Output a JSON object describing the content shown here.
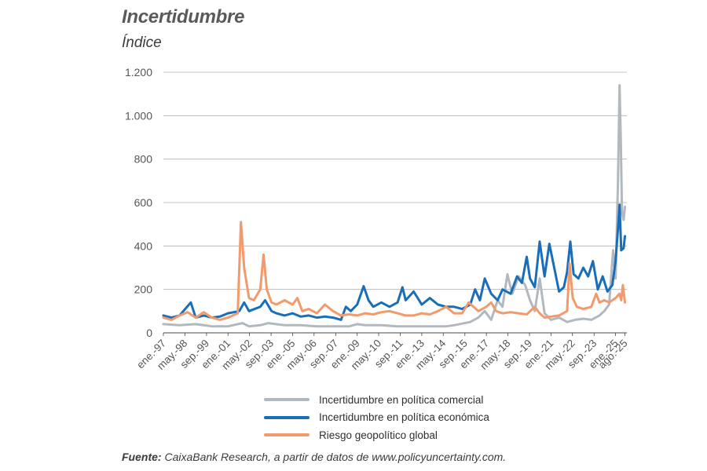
{
  "chart_data": {
    "type": "line",
    "title": "Incertidumbre",
    "ylabel": "Índice",
    "ylim": [
      0,
      1200
    ],
    "yticks": [
      0,
      200,
      400,
      600,
      800,
      1000,
      1200
    ],
    "ytick_labels": [
      "0",
      "200",
      "400",
      "600",
      "800",
      "1.000",
      "1.200"
    ],
    "xlim": [
      1997.0,
      2025.7
    ],
    "xticks": [
      1997.0,
      1998.33,
      1999.67,
      2001.0,
      2002.33,
      2003.67,
      2005.0,
      2006.33,
      2007.67,
      2009.0,
      2010.33,
      2011.67,
      2013.0,
      2014.33,
      2015.67,
      2017.0,
      2018.33,
      2019.67,
      2021.0,
      2022.33,
      2023.67,
      2025.0,
      2025.58
    ],
    "xtick_labels": [
      "ene.-97",
      "may.-98",
      "sep.-99",
      "ene.-01",
      "may.-02",
      "sep.-03",
      "ene.-05",
      "may.-06",
      "sep.-07",
      "ene.-09",
      "may.-10",
      "sep.-11",
      "ene.-13",
      "may.-14",
      "sep.-15",
      "ene.-17",
      "may.-18",
      "sep.-19",
      "ene.-21",
      "may.-22",
      "sep.-23",
      "ene.-25",
      "ago.-25"
    ],
    "grid": "horizontal",
    "legend_position": "bottom",
    "series": [
      {
        "name": "Incertidumbre en política comercial",
        "color": "#b1b9bf",
        "points": [
          [
            1997.0,
            40
          ],
          [
            1998.0,
            35
          ],
          [
            1999.0,
            40
          ],
          [
            2000.0,
            30
          ],
          [
            2001.0,
            30
          ],
          [
            2001.9,
            45
          ],
          [
            2002.3,
            30
          ],
          [
            2003.0,
            35
          ],
          [
            2003.5,
            45
          ],
          [
            2004.5,
            35
          ],
          [
            2005.5,
            35
          ],
          [
            2006.5,
            30
          ],
          [
            2007.5,
            30
          ],
          [
            2008.5,
            30
          ],
          [
            2009.0,
            40
          ],
          [
            2009.5,
            35
          ],
          [
            2010.5,
            35
          ],
          [
            2011.5,
            30
          ],
          [
            2012.5,
            30
          ],
          [
            2013.5,
            30
          ],
          [
            2014.5,
            30
          ],
          [
            2015.0,
            35
          ],
          [
            2016.0,
            50
          ],
          [
            2016.5,
            70
          ],
          [
            2016.9,
            100
          ],
          [
            2017.3,
            60
          ],
          [
            2017.7,
            150
          ],
          [
            2018.0,
            120
          ],
          [
            2018.3,
            270
          ],
          [
            2018.6,
            180
          ],
          [
            2019.0,
            260
          ],
          [
            2019.4,
            220
          ],
          [
            2019.7,
            150
          ],
          [
            2020.0,
            100
          ],
          [
            2020.3,
            250
          ],
          [
            2020.6,
            90
          ],
          [
            2021.0,
            60
          ],
          [
            2021.5,
            70
          ],
          [
            2022.0,
            50
          ],
          [
            2022.5,
            60
          ],
          [
            2023.0,
            65
          ],
          [
            2023.5,
            60
          ],
          [
            2024.0,
            80
          ],
          [
            2024.3,
            100
          ],
          [
            2024.6,
            130
          ],
          [
            2024.85,
            380
          ],
          [
            2025.0,
            250
          ],
          [
            2025.15,
            700
          ],
          [
            2025.25,
            1140
          ],
          [
            2025.32,
            900
          ],
          [
            2025.4,
            550
          ],
          [
            2025.5,
            520
          ],
          [
            2025.58,
            580
          ]
        ]
      },
      {
        "name": "Incertidumbre en política económica",
        "color": "#1a6eb8",
        "points": [
          [
            1997.0,
            80
          ],
          [
            1997.5,
            70
          ],
          [
            1998.0,
            80
          ],
          [
            1998.7,
            140
          ],
          [
            1999.0,
            70
          ],
          [
            1999.5,
            80
          ],
          [
            2000.0,
            70
          ],
          [
            2000.5,
            75
          ],
          [
            2001.0,
            90
          ],
          [
            2001.7,
            100
          ],
          [
            2002.0,
            140
          ],
          [
            2002.3,
            100
          ],
          [
            2003.0,
            120
          ],
          [
            2003.3,
            150
          ],
          [
            2003.7,
            100
          ],
          [
            2004.0,
            90
          ],
          [
            2004.5,
            80
          ],
          [
            2005.0,
            90
          ],
          [
            2005.5,
            75
          ],
          [
            2006.0,
            80
          ],
          [
            2006.5,
            70
          ],
          [
            2007.0,
            75
          ],
          [
            2007.5,
            70
          ],
          [
            2008.0,
            60
          ],
          [
            2008.3,
            120
          ],
          [
            2008.6,
            100
          ],
          [
            2009.0,
            130
          ],
          [
            2009.4,
            215
          ],
          [
            2009.7,
            150
          ],
          [
            2010.0,
            120
          ],
          [
            2010.5,
            140
          ],
          [
            2011.0,
            120
          ],
          [
            2011.5,
            140
          ],
          [
            2011.8,
            210
          ],
          [
            2012.0,
            150
          ],
          [
            2012.5,
            190
          ],
          [
            2013.0,
            130
          ],
          [
            2013.5,
            160
          ],
          [
            2014.0,
            130
          ],
          [
            2014.5,
            120
          ],
          [
            2015.0,
            120
          ],
          [
            2015.5,
            110
          ],
          [
            2016.0,
            130
          ],
          [
            2016.3,
            200
          ],
          [
            2016.6,
            150
          ],
          [
            2016.9,
            250
          ],
          [
            2017.3,
            180
          ],
          [
            2017.7,
            150
          ],
          [
            2018.0,
            200
          ],
          [
            2018.5,
            180
          ],
          [
            2018.9,
            260
          ],
          [
            2019.2,
            230
          ],
          [
            2019.5,
            350
          ],
          [
            2019.7,
            250
          ],
          [
            2020.0,
            210
          ],
          [
            2020.3,
            420
          ],
          [
            2020.6,
            260
          ],
          [
            2020.9,
            410
          ],
          [
            2021.2,
            300
          ],
          [
            2021.5,
            190
          ],
          [
            2021.8,
            210
          ],
          [
            2022.0,
            280
          ],
          [
            2022.2,
            420
          ],
          [
            2022.4,
            270
          ],
          [
            2022.7,
            250
          ],
          [
            2023.0,
            300
          ],
          [
            2023.3,
            260
          ],
          [
            2023.6,
            330
          ],
          [
            2023.9,
            200
          ],
          [
            2024.2,
            260
          ],
          [
            2024.5,
            190
          ],
          [
            2024.8,
            220
          ],
          [
            2025.0,
            330
          ],
          [
            2025.15,
            480
          ],
          [
            2025.25,
            590
          ],
          [
            2025.35,
            380
          ],
          [
            2025.5,
            390
          ],
          [
            2025.58,
            445
          ]
        ]
      },
      {
        "name": "Riesgo geopolítico global",
        "color": "#f29a6c",
        "points": [
          [
            1997.0,
            70
          ],
          [
            1997.5,
            60
          ],
          [
            1998.0,
            80
          ],
          [
            1998.5,
            95
          ],
          [
            1999.0,
            70
          ],
          [
            1999.5,
            95
          ],
          [
            2000.0,
            70
          ],
          [
            2000.5,
            60
          ],
          [
            2001.0,
            70
          ],
          [
            2001.6,
            90
          ],
          [
            2001.8,
            510
          ],
          [
            2002.0,
            300
          ],
          [
            2002.3,
            160
          ],
          [
            2002.6,
            150
          ],
          [
            2003.0,
            200
          ],
          [
            2003.2,
            360
          ],
          [
            2003.4,
            200
          ],
          [
            2003.7,
            140
          ],
          [
            2004.0,
            130
          ],
          [
            2004.5,
            150
          ],
          [
            2005.0,
            130
          ],
          [
            2005.3,
            160
          ],
          [
            2005.6,
            100
          ],
          [
            2006.0,
            110
          ],
          [
            2006.5,
            90
          ],
          [
            2007.0,
            130
          ],
          [
            2007.5,
            100
          ],
          [
            2008.0,
            80
          ],
          [
            2008.5,
            85
          ],
          [
            2009.0,
            80
          ],
          [
            2009.5,
            90
          ],
          [
            2010.0,
            85
          ],
          [
            2010.5,
            95
          ],
          [
            2011.0,
            100
          ],
          [
            2011.5,
            90
          ],
          [
            2012.0,
            80
          ],
          [
            2012.5,
            80
          ],
          [
            2013.0,
            90
          ],
          [
            2013.5,
            85
          ],
          [
            2014.0,
            100
          ],
          [
            2014.5,
            120
          ],
          [
            2015.0,
            90
          ],
          [
            2015.5,
            90
          ],
          [
            2015.9,
            140
          ],
          [
            2016.2,
            120
          ],
          [
            2016.5,
            100
          ],
          [
            2017.0,
            120
          ],
          [
            2017.3,
            140
          ],
          [
            2017.6,
            100
          ],
          [
            2018.0,
            90
          ],
          [
            2018.5,
            95
          ],
          [
            2019.0,
            90
          ],
          [
            2019.5,
            85
          ],
          [
            2020.0,
            120
          ],
          [
            2020.3,
            90
          ],
          [
            2020.6,
            70
          ],
          [
            2021.0,
            75
          ],
          [
            2021.5,
            80
          ],
          [
            2022.0,
            100
          ],
          [
            2022.15,
            320
          ],
          [
            2022.35,
            160
          ],
          [
            2022.6,
            120
          ],
          [
            2023.0,
            110
          ],
          [
            2023.5,
            120
          ],
          [
            2023.8,
            180
          ],
          [
            2024.0,
            140
          ],
          [
            2024.3,
            150
          ],
          [
            2024.6,
            140
          ],
          [
            2025.0,
            160
          ],
          [
            2025.25,
            180
          ],
          [
            2025.35,
            150
          ],
          [
            2025.45,
            220
          ],
          [
            2025.58,
            140
          ]
        ]
      }
    ]
  },
  "header": {
    "title": "Incertidumbre",
    "subtitle": "Índice"
  },
  "legend": [
    {
      "label": "Incertidumbre en política comercial",
      "color": "#b1b9bf"
    },
    {
      "label": "Incertidumbre en política económica",
      "color": "#1a6eb8"
    },
    {
      "label": "Riesgo geopolítico global",
      "color": "#f29a6c"
    }
  ],
  "footer": {
    "source_label": "Fuente:",
    "source_text": " CaixaBank Research, a partir de datos de www.policyuncertainty.com."
  }
}
